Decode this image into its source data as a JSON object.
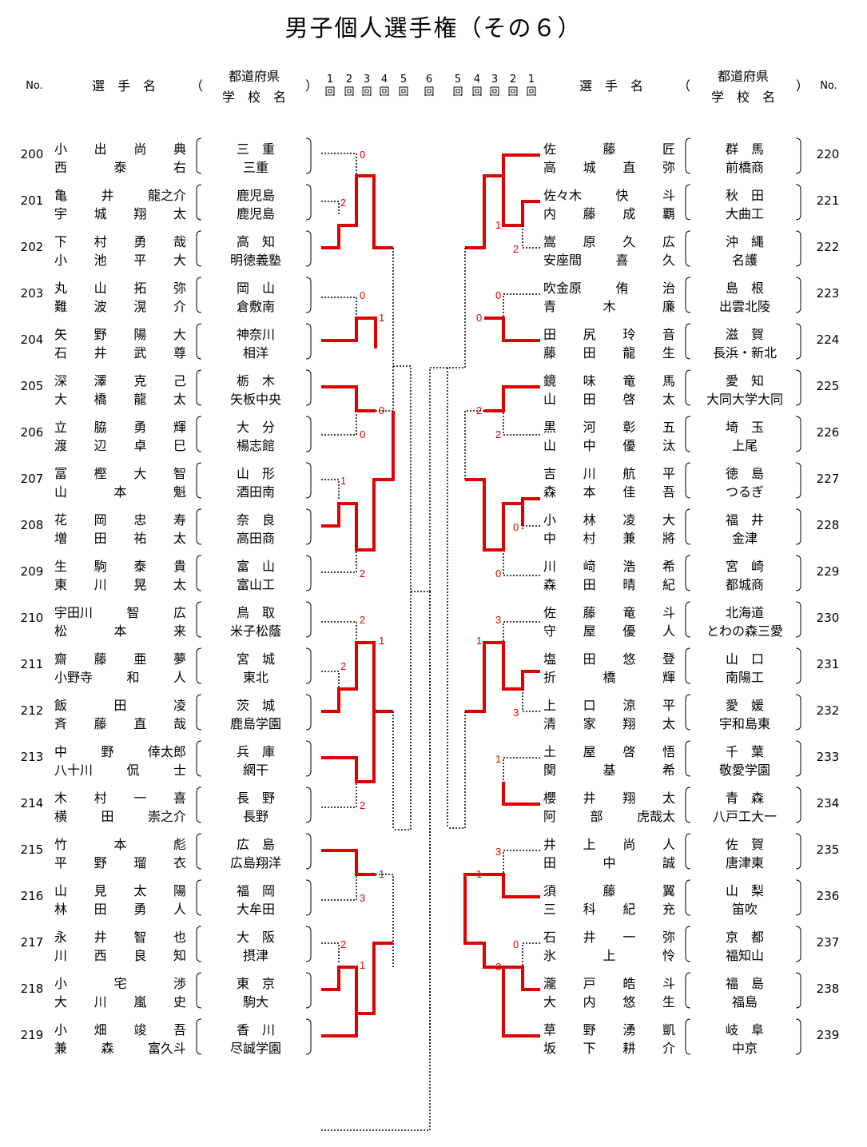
{
  "title": "男子個人選手権（その６）",
  "header": {
    "no": "No.",
    "player": "選　手　名",
    "open_paren": "（",
    "close_paren": "）",
    "pref": "都道府県",
    "school": "学　校　名",
    "rounds_left": [
      "1\n回",
      "2\n回",
      "3\n回",
      "4\n回",
      "5\n回",
      "6\n回"
    ],
    "rounds_right": [
      "5\n回",
      "4\n回",
      "3\n回",
      "2\n回",
      "1\n回"
    ]
  },
  "left_entries": [
    {
      "no": "200",
      "p1": "小　出　尚　典",
      "p2": "西　泰　右",
      "pref": "三　重",
      "school": "三重"
    },
    {
      "no": "201",
      "p1": "亀　井　龍之介",
      "p2": "宇　城　翔　太",
      "pref": "鹿児島",
      "school": "鹿児島"
    },
    {
      "no": "202",
      "p1": "下　村　勇　哉",
      "p2": "小　池　平　大",
      "pref": "高　知",
      "school": "明徳義塾"
    },
    {
      "no": "203",
      "p1": "丸　山　拓　弥",
      "p2": "難　波　滉　介",
      "pref": "岡　山",
      "school": "倉敷南"
    },
    {
      "no": "204",
      "p1": "矢　野　陽　大",
      "p2": "石　井　武　尊",
      "pref": "神奈川",
      "school": "相洋"
    },
    {
      "no": "205",
      "p1": "深　澤　克　己",
      "p2": "大　橋　龍　太",
      "pref": "栃　木",
      "school": "矢板中央"
    },
    {
      "no": "206",
      "p1": "立　脇　勇　輝",
      "p2": "渡　辺　卓　巳",
      "pref": "大　分",
      "school": "楊志館"
    },
    {
      "no": "207",
      "p1": "冨　樫　大　智",
      "p2": "山　本　魁",
      "pref": "山　形",
      "school": "酒田南"
    },
    {
      "no": "208",
      "p1": "花　岡　忠　寿",
      "p2": "増　田　祐　太",
      "pref": "奈　良",
      "school": "高田商"
    },
    {
      "no": "209",
      "p1": "生　駒　泰　貴",
      "p2": "東　川　晃　太",
      "pref": "富　山",
      "school": "富山工"
    },
    {
      "no": "210",
      "p1": "宇田川　智　広",
      "p2": "松　本　来",
      "pref": "鳥　取",
      "school": "米子松蔭"
    },
    {
      "no": "211",
      "p1": "齋　藤　亜　夢",
      "p2": "小野寺　和　人",
      "pref": "宮　城",
      "school": "東北"
    },
    {
      "no": "212",
      "p1": "飯　田　凌",
      "p2": "斉　藤　直　哉",
      "pref": "茨　城",
      "school": "鹿島学園"
    },
    {
      "no": "213",
      "p1": "中　野　倖太郎",
      "p2": "八十川　侃　士",
      "pref": "兵　庫",
      "school": "網干"
    },
    {
      "no": "214",
      "p1": "木　村　一　喜",
      "p2": "横　田　崇之介",
      "pref": "長　野",
      "school": "長野"
    },
    {
      "no": "215",
      "p1": "竹　本　彪",
      "p2": "平　野　瑠　衣",
      "pref": "広　島",
      "school": "広島翔洋"
    },
    {
      "no": "216",
      "p1": "山　見　太　陽",
      "p2": "林　田　勇　人",
      "pref": "福　岡",
      "school": "大牟田"
    },
    {
      "no": "217",
      "p1": "永　井　智　也",
      "p2": "川　西　良　知",
      "pref": "大　阪",
      "school": "摂津"
    },
    {
      "no": "218",
      "p1": "小　宅　渉",
      "p2": "大　川　嵐　史",
      "pref": "東　京",
      "school": "駒大"
    },
    {
      "no": "219",
      "p1": "小　畑　竣　吾",
      "p2": "兼　森　富久斗",
      "pref": "香　川",
      "school": "尽誠学園"
    }
  ],
  "right_entries": [
    {
      "no": "220",
      "p1": "佐　藤　匠",
      "p2": "高　城　直　弥",
      "pref": "群　馬",
      "school": "前橋商"
    },
    {
      "no": "221",
      "p1": "佐々木　快　斗",
      "p2": "内　藤　成　覇",
      "pref": "秋　田",
      "school": "大曲工"
    },
    {
      "no": "222",
      "p1": "嵩　原　久　広",
      "p2": "安座間　喜　久",
      "pref": "沖　縄",
      "school": "名護"
    },
    {
      "no": "223",
      "p1": "吹金原　侑　治",
      "p2": "青　木　廉",
      "pref": "島　根",
      "school": "出雲北陵"
    },
    {
      "no": "224",
      "p1": "田　尻　玲　音",
      "p2": "藤　田　龍　生",
      "pref": "滋　賀",
      "school": "長浜・新北"
    },
    {
      "no": "225",
      "p1": "鏡　味　竜　馬",
      "p2": "山　田　啓　太",
      "pref": "愛　知",
      "school": "大同大学大同"
    },
    {
      "no": "226",
      "p1": "黒　河　彰　五",
      "p2": "山　中　優　汰",
      "pref": "埼　玉",
      "school": "上尾"
    },
    {
      "no": "227",
      "p1": "吉　川　航　平",
      "p2": "森　本　佳　吾",
      "pref": "徳　島",
      "school": "つるぎ"
    },
    {
      "no": "228",
      "p1": "小　林　凌　大",
      "p2": "中　村　兼　將",
      "pref": "福　井",
      "school": "金津"
    },
    {
      "no": "229",
      "p1": "川　﨑　浩　希",
      "p2": "森　田　晴　紀",
      "pref": "宮　崎",
      "school": "都城商"
    },
    {
      "no": "230",
      "p1": "佐　藤　竜　斗",
      "p2": "守　屋　優　人",
      "pref": "北海道",
      "school": "とわの森三愛"
    },
    {
      "no": "231",
      "p1": "塩　田　悠　登",
      "p2": "折　橋　輝",
      "pref": "山　口",
      "school": "南陽工"
    },
    {
      "no": "232",
      "p1": "上　口　涼　平",
      "p2": "清　家　翔　太",
      "pref": "愛　媛",
      "school": "宇和島東"
    },
    {
      "no": "233",
      "p1": "土　屋　啓　悟",
      "p2": "関　基　希",
      "pref": "千　葉",
      "school": "敬愛学園"
    },
    {
      "no": "234",
      "p1": "櫻　井　翔　太",
      "p2": "阿　部　虎哉太",
      "pref": "青　森",
      "school": "八戸工大一"
    },
    {
      "no": "235",
      "p1": "井　上　尚　人",
      "p2": "田　中　誠",
      "pref": "佐　賀",
      "school": "唐津東"
    },
    {
      "no": "236",
      "p1": "須　藤　翼",
      "p2": "三　科　紀　充",
      "pref": "山　梨",
      "school": "笛吹"
    },
    {
      "no": "237",
      "p1": "石　井　一　弥",
      "p2": "氷　上　怜",
      "pref": "京　都",
      "school": "福知山"
    },
    {
      "no": "238",
      "p1": "瀧　戸　皓　斗",
      "p2": "大　内　悠　生",
      "pref": "福　島",
      "school": "福島"
    },
    {
      "no": "239",
      "p1": "草　野　湧　凱",
      "p2": "坂　下　耕　介",
      "pref": "岐　阜",
      "school": "中京"
    }
  ],
  "scores_left": [
    "0",
    "2",
    "0",
    "1",
    "0",
    "0",
    "1",
    "2",
    "2",
    "1",
    "2",
    "2",
    "1",
    "3",
    "2",
    "1"
  ],
  "scores_right": [
    "1",
    "2",
    "0",
    "0",
    "2",
    "2",
    "0",
    "0",
    "3",
    "1",
    "3",
    "1",
    "3",
    "1",
    "0",
    "3"
  ],
  "colors": {
    "win_line": "#e00000",
    "loss_line": "#000000",
    "score": "#e00000"
  }
}
